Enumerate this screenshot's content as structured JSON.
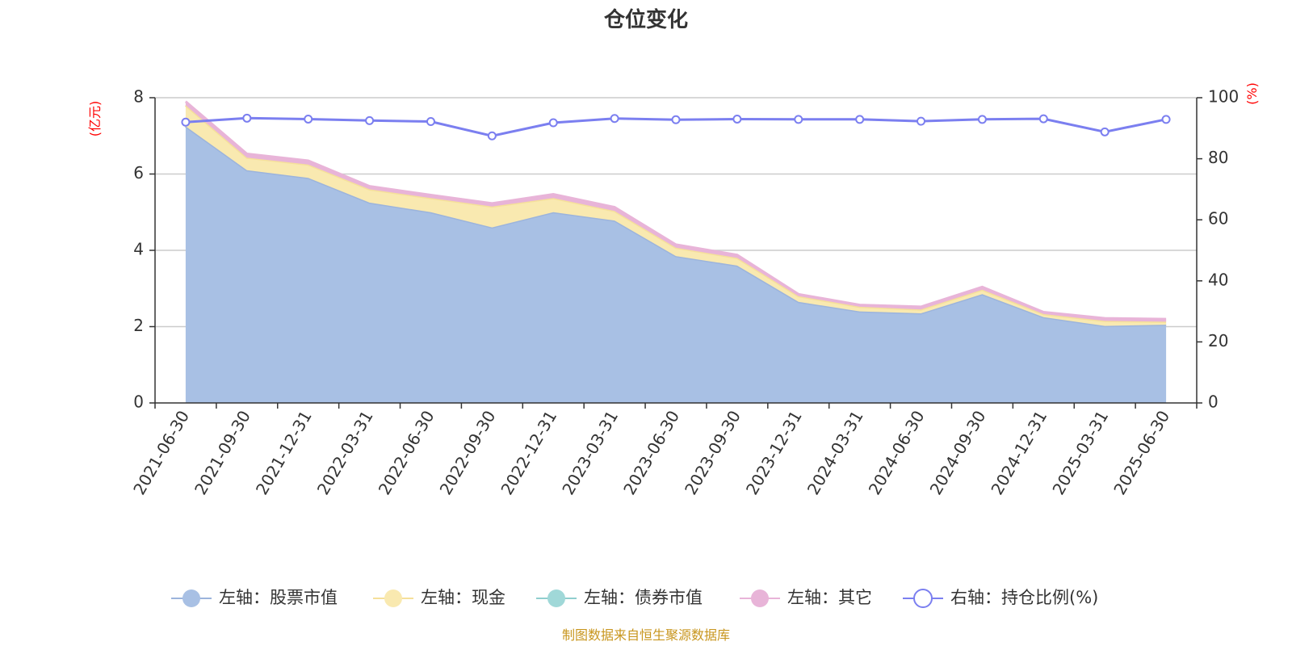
{
  "chart_data": {
    "type": "area",
    "title": "仓位变化",
    "categories": [
      "2021-06-30",
      "2021-09-30",
      "2021-12-31",
      "2022-03-31",
      "2022-06-30",
      "2022-09-30",
      "2022-12-31",
      "2023-03-31",
      "2023-06-30",
      "2023-09-30",
      "2023-12-31",
      "2024-03-31",
      "2024-06-30",
      "2024-09-30",
      "2024-12-31",
      "2025-03-31",
      "2025-06-30"
    ],
    "left_axis": {
      "unit": "(亿元)",
      "ylim": [
        0,
        8
      ],
      "ticks": [
        "0",
        "2",
        "4",
        "6",
        "8"
      ]
    },
    "right_axis": {
      "unit": "(%)",
      "ylim": [
        0,
        100
      ],
      "ticks": [
        "0",
        "20",
        "40",
        "60",
        "80",
        "100"
      ]
    },
    "grid": true,
    "legend_position": "bottom",
    "series": [
      {
        "name": "左轴：股票市值",
        "axis": "left",
        "stacked": true,
        "color": "#a8c0e4",
        "line_color": "#9cb4dc",
        "values": [
          7.25,
          6.1,
          5.9,
          5.25,
          5.0,
          4.6,
          5.0,
          4.78,
          3.85,
          3.6,
          2.65,
          2.4,
          2.35,
          2.85,
          2.25,
          2.02,
          2.05
        ]
      },
      {
        "name": "左轴：现金",
        "axis": "left",
        "stacked": true,
        "color": "#f9e9b0",
        "line_color": "#f5e09a",
        "values": [
          0.55,
          0.33,
          0.35,
          0.35,
          0.37,
          0.55,
          0.37,
          0.25,
          0.22,
          0.2,
          0.15,
          0.12,
          0.1,
          0.12,
          0.08,
          0.13,
          0.08
        ]
      },
      {
        "name": "左轴：债券市值",
        "axis": "left",
        "stacked": true,
        "color": "#a0d8d8",
        "line_color": "#90cece",
        "values": [
          0,
          0,
          0,
          0,
          0,
          0,
          0,
          0,
          0,
          0,
          0,
          0,
          0,
          0,
          0,
          0,
          0
        ]
      },
      {
        "name": "左轴：其它",
        "axis": "left",
        "stacked": true,
        "color": "#e8b4d8",
        "line_color": "#e8b4d8",
        "values": [
          0.1,
          0.1,
          0.1,
          0.08,
          0.08,
          0.08,
          0.1,
          0.1,
          0.08,
          0.08,
          0.05,
          0.05,
          0.07,
          0.07,
          0.05,
          0.07,
          0.07
        ]
      },
      {
        "name": "右轴：持仓比例(%)",
        "axis": "right",
        "stacked": false,
        "color": "#7b7ff0",
        "values": [
          92,
          93.3,
          93,
          92.5,
          92.2,
          87.5,
          91.8,
          93.2,
          92.8,
          93,
          92.9,
          92.9,
          92.3,
          92.9,
          93.1,
          88.8,
          92.9
        ]
      }
    ],
    "source_note": "制图数据来自恒生聚源数据库"
  }
}
